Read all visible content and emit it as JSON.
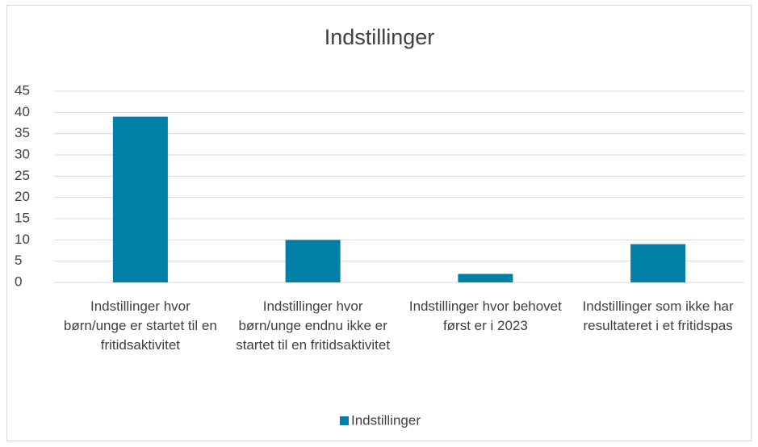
{
  "chart_data": {
    "type": "bar",
    "title": "Indstillinger",
    "categories": [
      "Indstillinger hvor børn/unge er startet til en fritidsaktivitet",
      "Indstillinger hvor børn/unge endnu ikke er startet til en fritidsaktivitet",
      "Indstillinger hvor behovet først er i 2023",
      "Indstillinger som ikke har resultateret i et fritidspas"
    ],
    "series": [
      {
        "name": "Indstillinger",
        "color": "#0080a6",
        "values": [
          39,
          10,
          2,
          9
        ]
      }
    ],
    "ylim": [
      0,
      45
    ],
    "yticks": [
      0,
      5,
      10,
      15,
      20,
      25,
      30,
      35,
      40,
      45
    ],
    "grid": true,
    "legend": "bottom"
  }
}
